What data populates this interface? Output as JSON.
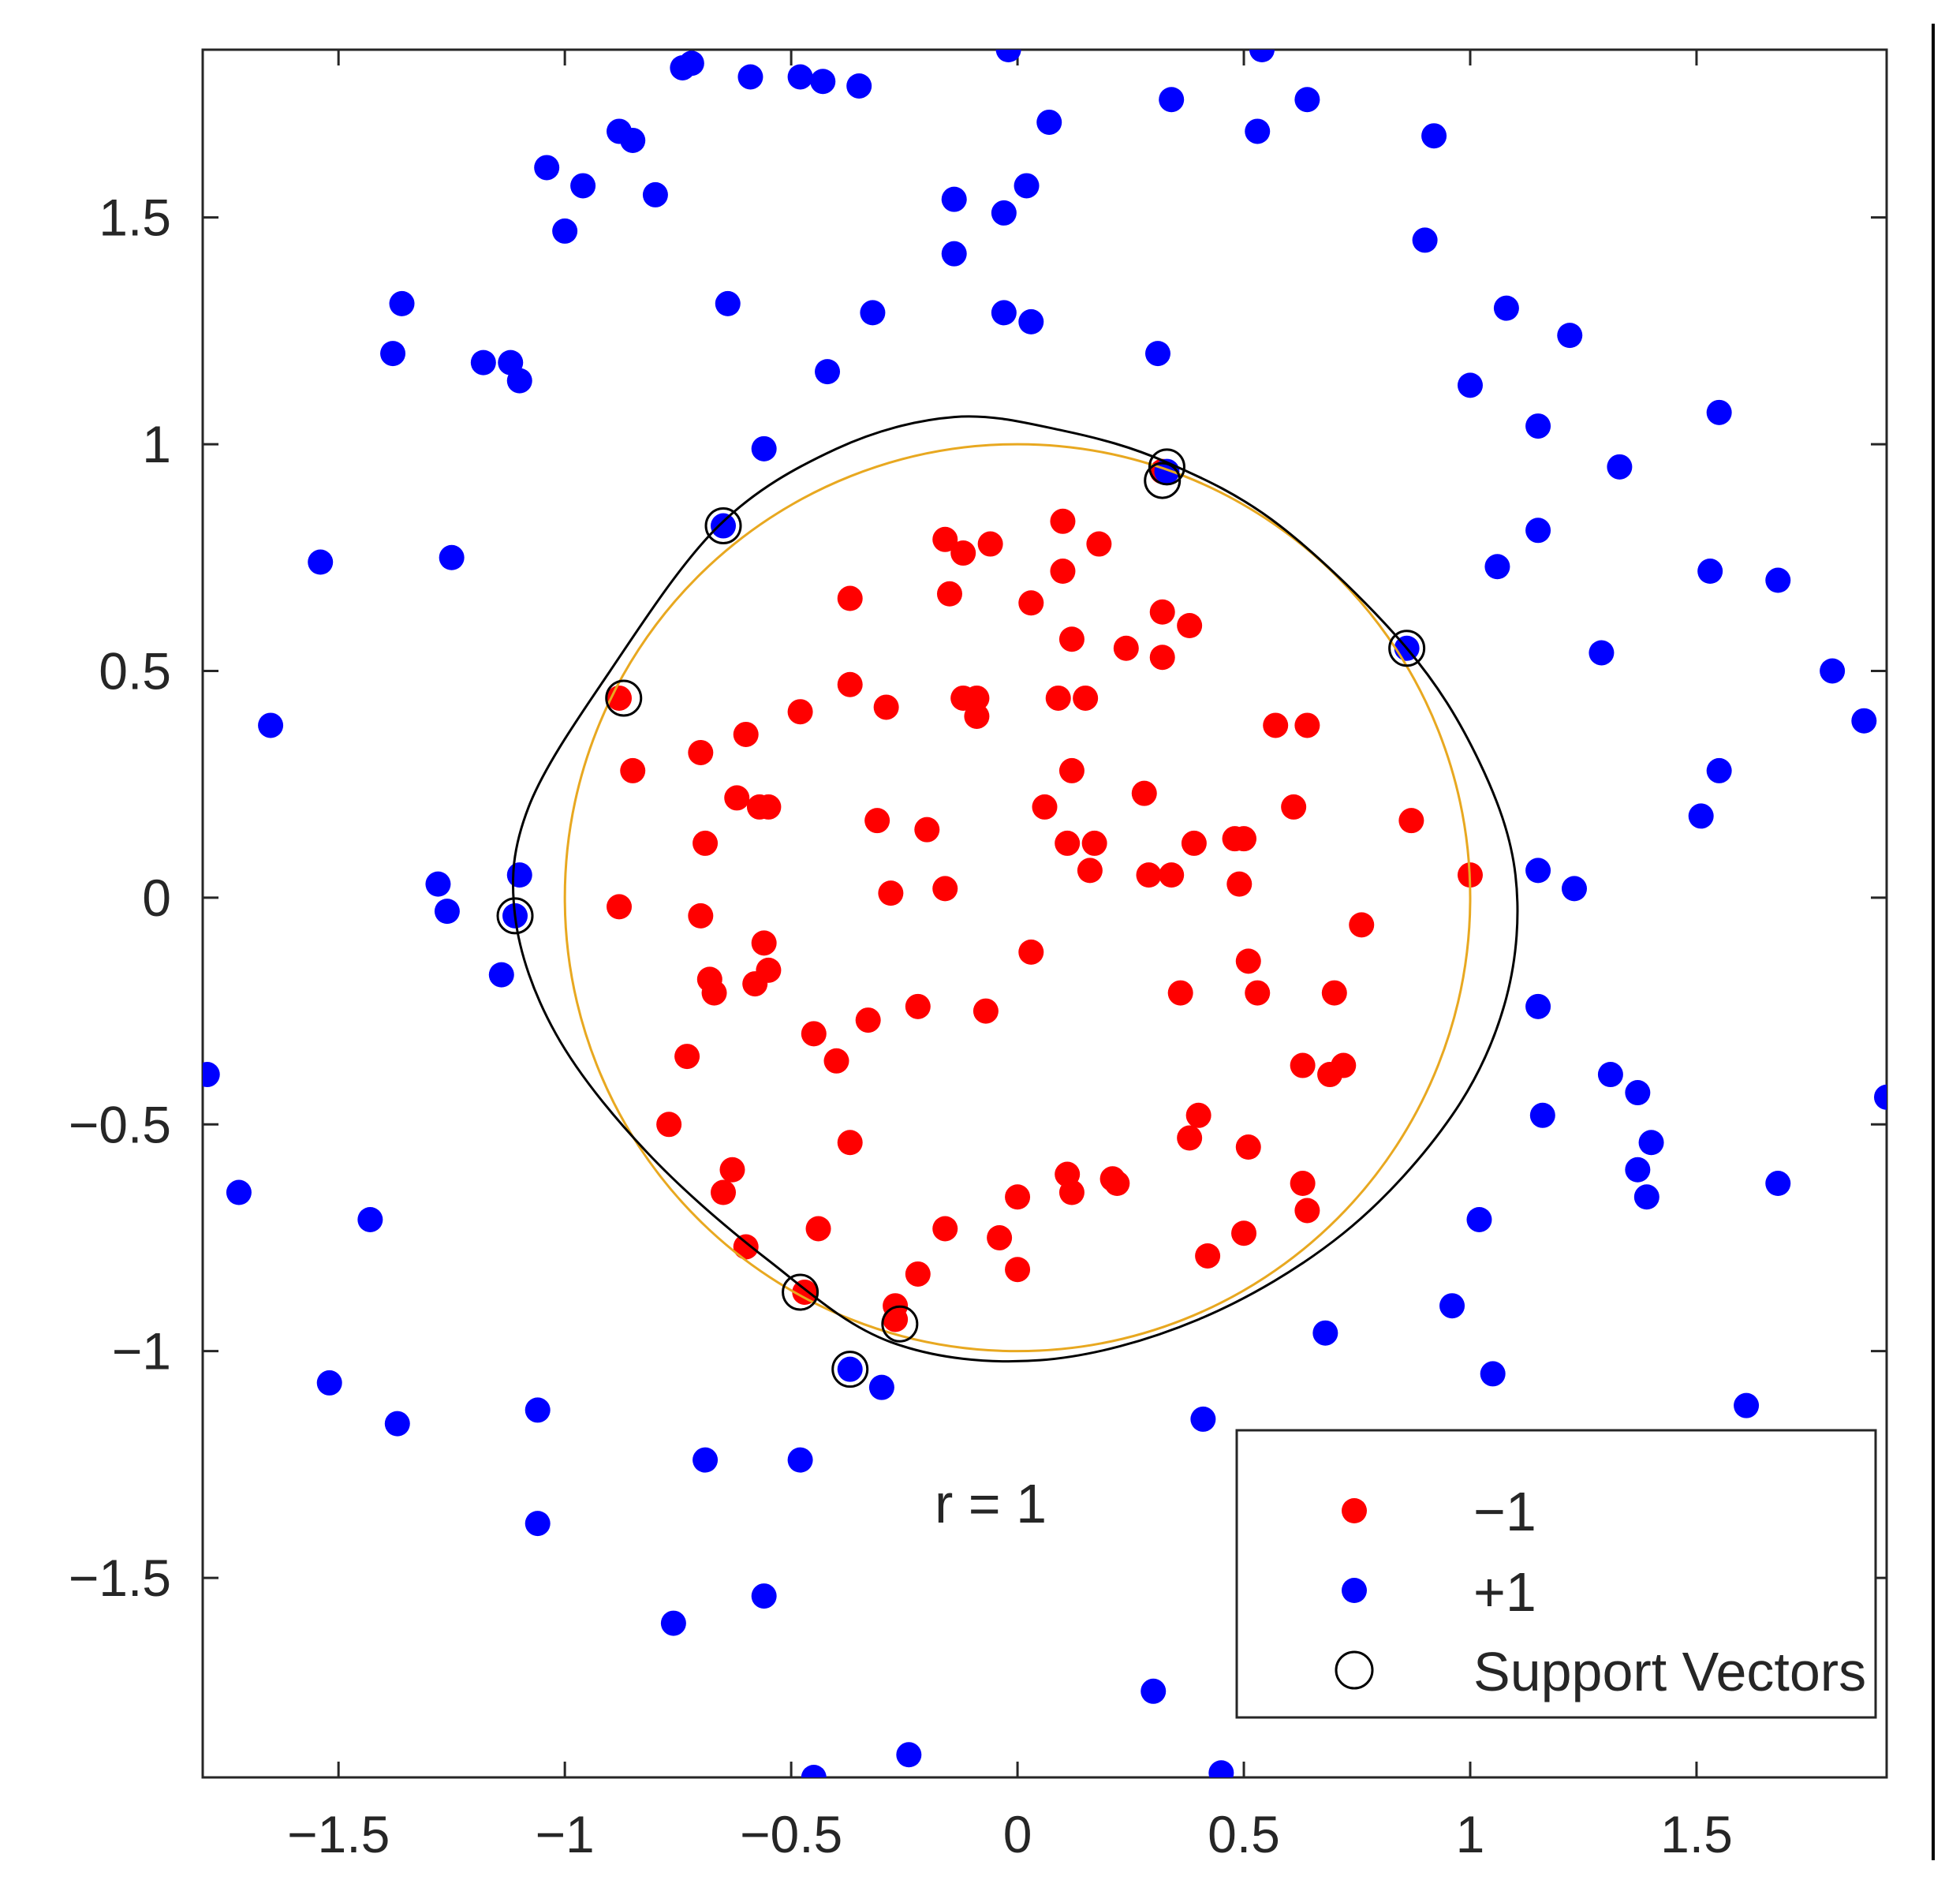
{
  "chart_data": {
    "type": "scatter",
    "xlim": [
      -1.8,
      1.92
    ],
    "ylim": [
      -1.94,
      1.87
    ],
    "x_ticks": [
      -1.5,
      -1,
      -0.5,
      0,
      0.5,
      1,
      1.5
    ],
    "y_ticks": [
      -1.5,
      -1,
      -0.5,
      0,
      0.5,
      1,
      1.5
    ],
    "x_tick_labels": [
      "−1.5",
      "−1",
      "−0.5",
      "0",
      "0.5",
      "1",
      "1.5"
    ],
    "y_tick_labels": [
      "−1.5",
      "−1",
      "−0.5",
      "0",
      "0.5",
      "1",
      "1.5"
    ],
    "grid": false,
    "annotation": "r = 1",
    "legend_position": "bottom-right",
    "legend": [
      {
        "label": "−1",
        "marker": "dot",
        "color": "#ff0000"
      },
      {
        "label": "+1",
        "marker": "dot",
        "color": "#0000ff"
      },
      {
        "label": "Support Vectors",
        "marker": "circle",
        "color": "#000000"
      }
    ],
    "series": [
      {
        "name": "−1",
        "color": "#ff0000",
        "points": [
          [
            -0.16,
            0.79
          ],
          [
            -0.12,
            0.76
          ],
          [
            -0.06,
            0.78
          ],
          [
            0.1,
            0.83
          ],
          [
            0.18,
            0.78
          ],
          [
            0.1,
            0.72
          ],
          [
            0.03,
            0.65
          ],
          [
            -0.15,
            0.67
          ],
          [
            -0.37,
            0.66
          ],
          [
            0.32,
            0.63
          ],
          [
            0.38,
            0.6
          ],
          [
            0.12,
            0.57
          ],
          [
            0.24,
            0.55
          ],
          [
            0.32,
            0.53
          ],
          [
            -0.37,
            0.47
          ],
          [
            -0.29,
            0.42
          ],
          [
            -0.48,
            0.41
          ],
          [
            -0.12,
            0.44
          ],
          [
            -0.09,
            0.44
          ],
          [
            -0.09,
            0.4
          ],
          [
            0.09,
            0.44
          ],
          [
            0.15,
            0.44
          ],
          [
            -0.6,
            0.36
          ],
          [
            -0.7,
            0.32
          ],
          [
            -0.85,
            0.28
          ],
          [
            0.57,
            0.38
          ],
          [
            0.64,
            0.38
          ],
          [
            0.12,
            0.28
          ],
          [
            -0.62,
            0.22
          ],
          [
            -0.57,
            0.2
          ],
          [
            -0.55,
            0.2
          ],
          [
            0.06,
            0.2
          ],
          [
            0.28,
            0.23
          ],
          [
            0.61,
            0.2
          ],
          [
            -0.31,
            0.17
          ],
          [
            -0.2,
            0.15
          ],
          [
            0.87,
            0.17
          ],
          [
            -0.69,
            0.12
          ],
          [
            0.11,
            0.12
          ],
          [
            0.17,
            0.12
          ],
          [
            0.39,
            0.12
          ],
          [
            0.48,
            0.13
          ],
          [
            0.5,
            0.13
          ],
          [
            0.16,
            0.06
          ],
          [
            0.29,
            0.05
          ],
          [
            0.34,
            0.05
          ],
          [
            0.49,
            0.03
          ],
          [
            1.0,
            0.05
          ],
          [
            -0.28,
            0.01
          ],
          [
            -0.16,
            0.02
          ],
          [
            -0.88,
            -0.02
          ],
          [
            -0.7,
            -0.04
          ],
          [
            0.76,
            -0.06
          ],
          [
            -0.56,
            -0.1
          ],
          [
            0.03,
            -0.12
          ],
          [
            -0.68,
            -0.18
          ],
          [
            -0.55,
            -0.16
          ],
          [
            -0.58,
            -0.19
          ],
          [
            -0.67,
            -0.21
          ],
          [
            0.51,
            -0.14
          ],
          [
            0.36,
            -0.21
          ],
          [
            0.53,
            -0.21
          ],
          [
            0.7,
            -0.21
          ],
          [
            -0.22,
            -0.24
          ],
          [
            -0.07,
            -0.25
          ],
          [
            -0.33,
            -0.27
          ],
          [
            -0.45,
            -0.3
          ],
          [
            -0.4,
            -0.36
          ],
          [
            -0.73,
            -0.35
          ],
          [
            0.63,
            -0.37
          ],
          [
            0.69,
            -0.39
          ],
          [
            0.72,
            -0.37
          ],
          [
            -0.77,
            -0.5
          ],
          [
            0.4,
            -0.48
          ],
          [
            0.38,
            -0.53
          ],
          [
            0.51,
            -0.55
          ],
          [
            -0.37,
            -0.54
          ],
          [
            -0.63,
            -0.6
          ],
          [
            -0.65,
            -0.65
          ],
          [
            0.11,
            -0.61
          ],
          [
            0.21,
            -0.62
          ],
          [
            0.12,
            -0.65
          ],
          [
            0.22,
            -0.63
          ],
          [
            0.63,
            -0.63
          ],
          [
            0.64,
            -0.69
          ],
          [
            0.0,
            -0.66
          ],
          [
            -0.16,
            -0.73
          ],
          [
            -0.44,
            -0.73
          ],
          [
            -0.04,
            -0.75
          ],
          [
            0.5,
            -0.74
          ],
          [
            -0.6,
            -0.77
          ],
          [
            0.42,
            -0.79
          ],
          [
            -0.0,
            -0.82
          ],
          [
            -0.22,
            -0.83
          ],
          [
            -0.47,
            -0.87
          ],
          [
            -0.27,
            -0.9
          ],
          [
            -0.27,
            -0.93
          ],
          [
            0.32,
            0.94
          ],
          [
            -0.88,
            0.44
          ]
        ]
      },
      {
        "name": "+1",
        "color": "#0000ff",
        "points": [
          [
            -0.02,
            1.87
          ],
          [
            0.54,
            1.87
          ],
          [
            -0.72,
            1.84
          ],
          [
            -0.74,
            1.83
          ],
          [
            -0.59,
            1.81
          ],
          [
            -0.48,
            1.81
          ],
          [
            -0.43,
            1.8
          ],
          [
            -0.35,
            1.79
          ],
          [
            0.34,
            1.76
          ],
          [
            0.64,
            1.76
          ],
          [
            0.07,
            1.71
          ],
          [
            0.53,
            1.69
          ],
          [
            0.92,
            1.68
          ],
          [
            -0.88,
            1.69
          ],
          [
            -0.85,
            1.67
          ],
          [
            -1.04,
            1.61
          ],
          [
            -0.96,
            1.57
          ],
          [
            -0.8,
            1.55
          ],
          [
            -0.14,
            1.54
          ],
          [
            0.02,
            1.57
          ],
          [
            -0.03,
            1.51
          ],
          [
            -1.0,
            1.47
          ],
          [
            0.9,
            1.45
          ],
          [
            -0.14,
            1.42
          ],
          [
            -1.36,
            1.31
          ],
          [
            -0.64,
            1.31
          ],
          [
            -0.32,
            1.29
          ],
          [
            -0.03,
            1.29
          ],
          [
            0.03,
            1.27
          ],
          [
            1.08,
            1.3
          ],
          [
            1.22,
            1.24
          ],
          [
            -1.38,
            1.2
          ],
          [
            -1.18,
            1.18
          ],
          [
            -1.12,
            1.18
          ],
          [
            -1.1,
            1.14
          ],
          [
            0.31,
            1.2
          ],
          [
            -0.42,
            1.16
          ],
          [
            1.0,
            1.13
          ],
          [
            1.55,
            1.07
          ],
          [
            1.15,
            1.04
          ],
          [
            -0.56,
            0.99
          ],
          [
            1.33,
            0.95
          ],
          [
            1.15,
            0.81
          ],
          [
            -1.54,
            0.74
          ],
          [
            -1.25,
            0.75
          ],
          [
            1.06,
            0.73
          ],
          [
            1.53,
            0.72
          ],
          [
            1.68,
            0.7
          ],
          [
            1.29,
            0.54
          ],
          [
            1.8,
            0.5
          ],
          [
            1.87,
            0.39
          ],
          [
            -1.65,
            0.38
          ],
          [
            1.55,
            0.28
          ],
          [
            1.51,
            0.18
          ],
          [
            -1.1,
            0.05
          ],
          [
            -1.28,
            0.03
          ],
          [
            -1.26,
            -0.03
          ],
          [
            1.15,
            0.06
          ],
          [
            1.23,
            0.02
          ],
          [
            -1.14,
            -0.17
          ],
          [
            1.15,
            -0.24
          ],
          [
            -1.79,
            -0.39
          ],
          [
            1.31,
            -0.39
          ],
          [
            1.37,
            -0.43
          ],
          [
            1.92,
            -0.44
          ],
          [
            1.16,
            -0.48
          ],
          [
            1.4,
            -0.54
          ],
          [
            1.37,
            -0.6
          ],
          [
            -1.72,
            -0.65
          ],
          [
            1.39,
            -0.66
          ],
          [
            1.68,
            -0.63
          ],
          [
            -1.43,
            -0.71
          ],
          [
            1.02,
            -0.71
          ],
          [
            0.96,
            -0.9
          ],
          [
            0.68,
            -0.96
          ],
          [
            1.05,
            -1.05
          ],
          [
            -0.3,
            -1.08
          ],
          [
            -1.52,
            -1.07
          ],
          [
            -1.37,
            -1.16
          ],
          [
            -1.06,
            -1.13
          ],
          [
            0.41,
            -1.15
          ],
          [
            1.61,
            -1.12
          ],
          [
            -0.69,
            -1.24
          ],
          [
            -0.48,
            -1.24
          ],
          [
            -1.06,
            -1.38
          ],
          [
            -0.56,
            -1.54
          ],
          [
            -0.76,
            -1.6
          ],
          [
            0.3,
            -1.75
          ],
          [
            -0.24,
            -1.89
          ],
          [
            -0.45,
            -1.94
          ],
          [
            0.45,
            -1.93
          ],
          [
            -0.65,
            0.82
          ],
          [
            0.33,
            0.94
          ],
          [
            0.86,
            0.55
          ],
          [
            -1.11,
            -0.04
          ],
          [
            -0.37,
            -1.04
          ]
        ]
      },
      {
        "name": "Support Vectors",
        "color": "#000000",
        "points": [
          [
            -0.65,
            0.82
          ],
          [
            0.33,
            0.95
          ],
          [
            0.32,
            0.92
          ],
          [
            0.86,
            0.55
          ],
          [
            -0.87,
            0.44
          ],
          [
            -1.11,
            -0.04
          ],
          [
            -0.48,
            -0.87
          ],
          [
            -0.26,
            -0.94
          ],
          [
            -0.37,
            -1.04
          ]
        ]
      }
    ]
  }
}
